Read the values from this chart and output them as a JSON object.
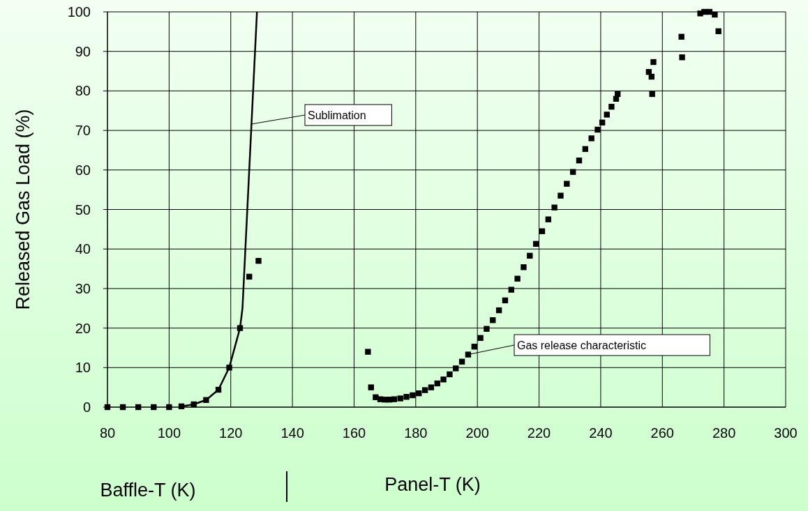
{
  "chart_data": {
    "type": "scatter",
    "xlabel": "Baffle-T (K)",
    "ylabel": "Released Gas Load (%)",
    "xlim": [
      80,
      300
    ],
    "xticks": [
      80,
      100,
      120,
      140,
      160,
      180,
      200,
      220,
      240,
      260,
      280,
      300
    ],
    "ylim": [
      0,
      100
    ],
    "yticks": [
      0,
      10,
      20,
      30,
      40,
      50,
      60,
      70,
      80,
      90,
      100
    ],
    "grid": true,
    "marker": "square",
    "series": [
      {
        "color": "#000000",
        "x": [
          80,
          85,
          90,
          95,
          100,
          104,
          108,
          112,
          116,
          119.5,
          123,
          126,
          129
        ],
        "values": [
          0,
          0,
          0,
          0,
          0,
          0.2,
          0.7,
          1.8,
          4.4,
          10,
          20,
          33,
          37
        ]
      },
      {
        "type": "line",
        "color": "#000000",
        "marker": "none",
        "line_style": "solid",
        "x": [
          104,
          108,
          112,
          116,
          119.5,
          123,
          123.8,
          128.5
        ],
        "values": [
          0.2,
          0.7,
          1.8,
          4.4,
          10,
          20,
          25,
          100
        ]
      },
      {
        "color": "#000000",
        "x": [
          164.5,
          165.5,
          167,
          168.5,
          170,
          171.5,
          173,
          175,
          177,
          179,
          181,
          183,
          185,
          187,
          189,
          191,
          193,
          195,
          197,
          199,
          201,
          203,
          205,
          207,
          209,
          211,
          213,
          215,
          217,
          219,
          221,
          223,
          225,
          227,
          229,
          231,
          233,
          235,
          237,
          239,
          240.5,
          242,
          243.5,
          245,
          245.5,
          255.6,
          256.5,
          256.7,
          257.1,
          266.2,
          266.4,
          272.3,
          273.6,
          275.3,
          277,
          278.2
        ],
        "values": [
          14,
          5,
          2.5,
          2,
          1.9,
          1.9,
          2,
          2.2,
          2.6,
          3,
          3.5,
          4.3,
          5,
          6,
          7,
          8.3,
          9.8,
          11.5,
          13.3,
          15.3,
          17.5,
          19.8,
          22,
          24.5,
          27,
          29.7,
          32.5,
          35.4,
          38.3,
          41.3,
          44.5,
          47.5,
          50.5,
          53.5,
          56.5,
          59.5,
          62.4,
          65.3,
          68,
          70.2,
          72,
          74,
          76,
          78,
          79.2,
          84.8,
          83.6,
          79.2,
          87.3,
          93.7,
          88.5,
          99.6,
          100,
          100,
          99.3,
          95.1
        ]
      }
    ],
    "annotations": [
      {
        "text": "Sublimation",
        "x": 126.6,
        "y": 71.6
      },
      {
        "text": "Gas release characteristic",
        "x": 197,
        "y": 13.3
      },
      "Panel-T (K)"
    ]
  }
}
